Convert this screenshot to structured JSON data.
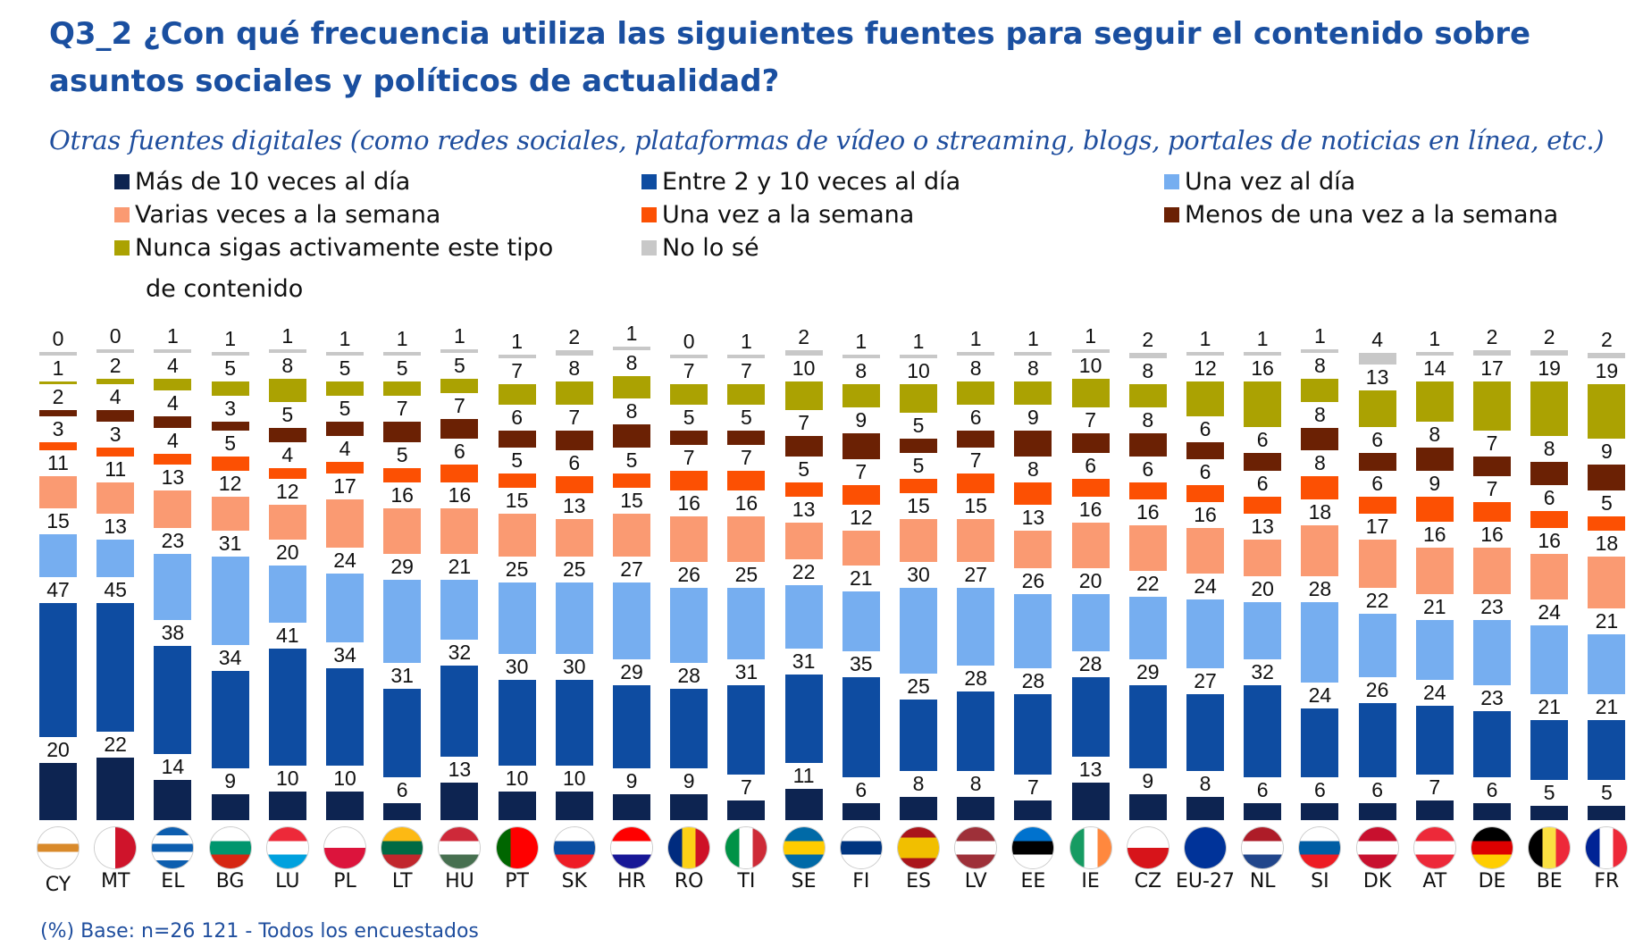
{
  "title": "Q3_2 ¿Con qué frecuencia utiliza las siguientes fuentes para seguir el contenido sobre asuntos sociales y políticos de actualidad?",
  "subtitle": "Otras fuentes digitales (como redes sociales, plataformas de vídeo o streaming, blogs, portales de noticias en línea, etc.)",
  "footer": "(%) Base: n=26 121 - Todos los encuestados",
  "chart_data": {
    "type": "bar",
    "stacked": true,
    "categories": [
      "CY",
      "MT",
      "EL",
      "BG",
      "LU",
      "PL",
      "LT",
      "HU",
      "PT",
      "SK",
      "HR",
      "RO",
      "TI",
      "SE",
      "FI",
      "ES",
      "LV",
      "EE",
      "IE",
      "CZ",
      "EU-27",
      "NL",
      "SI",
      "DK",
      "AT",
      "DE",
      "BE",
      "FR"
    ],
    "legend_position": "top",
    "series": [
      {
        "name": "Más de 10 veces al día",
        "color": "#0d2451",
        "values": [
          20,
          22,
          14,
          9,
          10,
          10,
          6,
          13,
          10,
          10,
          9,
          9,
          7,
          11,
          6,
          8,
          8,
          7,
          13,
          9,
          8,
          6,
          6,
          6,
          7,
          6,
          5,
          5
        ]
      },
      {
        "name": "Entre 2 y 10 veces al día",
        "color": "#0e4ca1",
        "values": [
          47,
          45,
          38,
          34,
          41,
          34,
          31,
          32,
          30,
          30,
          29,
          28,
          31,
          31,
          35,
          25,
          28,
          28,
          28,
          29,
          27,
          32,
          24,
          26,
          24,
          23,
          21,
          21
        ]
      },
      {
        "name": "Una vez al día",
        "color": "#76aef0",
        "values": [
          15,
          13,
          23,
          31,
          20,
          24,
          29,
          21,
          25,
          25,
          27,
          26,
          25,
          22,
          21,
          30,
          27,
          26,
          20,
          22,
          24,
          20,
          28,
          22,
          21,
          23,
          24,
          21
        ]
      },
      {
        "name": "Varias veces a la semana",
        "color": "#fa9a72",
        "values": [
          11,
          11,
          13,
          12,
          12,
          17,
          16,
          16,
          15,
          13,
          15,
          16,
          16,
          13,
          12,
          15,
          15,
          13,
          16,
          16,
          16,
          13,
          18,
          17,
          16,
          16,
          16,
          18
        ]
      },
      {
        "name": "Una vez a la semana",
        "color": "#fc5003",
        "values": [
          3,
          3,
          4,
          5,
          4,
          4,
          5,
          6,
          5,
          6,
          5,
          7,
          7,
          5,
          7,
          5,
          7,
          8,
          6,
          6,
          6,
          6,
          8,
          6,
          9,
          7,
          6,
          5
        ]
      },
      {
        "name": "Menos de una vez a la semana",
        "color": "#6b2104",
        "values": [
          2,
          4,
          4,
          3,
          5,
          5,
          7,
          7,
          6,
          7,
          8,
          5,
          5,
          7,
          9,
          5,
          6,
          9,
          7,
          8,
          6,
          6,
          8,
          6,
          8,
          7,
          8,
          9
        ]
      },
      {
        "name": "Nunca sigas activamente este tipo de contenido",
        "color": "#aba202",
        "values": [
          1,
          2,
          4,
          5,
          8,
          5,
          5,
          5,
          7,
          8,
          8,
          7,
          7,
          10,
          8,
          10,
          8,
          8,
          10,
          8,
          12,
          16,
          8,
          13,
          14,
          17,
          19,
          19
        ]
      },
      {
        "name": "No lo sé",
        "color": "#c8c8c8",
        "values": [
          0,
          0,
          1,
          1,
          1,
          1,
          1,
          1,
          1,
          2,
          1,
          0,
          1,
          2,
          1,
          1,
          1,
          1,
          1,
          2,
          1,
          1,
          1,
          4,
          1,
          2,
          2,
          2
        ]
      }
    ]
  },
  "legend": {
    "items": [
      "Más de 10 veces al día",
      "Entre 2 y 10 veces al día",
      "Una vez al día",
      "Varias veces a la semana",
      "Una vez a la semana",
      "Menos de una vez a la semana",
      "Nunca sigas activamente este tipo",
      "No lo sé"
    ],
    "wrap": "de contenido"
  },
  "flags": [
    {
      "dir": "h",
      "c": [
        "#ffffff",
        "#ffffff",
        "#d98a2b",
        "#ffffff",
        "#ffffff"
      ]
    },
    {
      "dir": "v",
      "c": [
        "#ffffff",
        "#cf142b"
      ]
    },
    {
      "dir": "h",
      "c": [
        "#0d5eaf",
        "#ffffff",
        "#0d5eaf",
        "#ffffff",
        "#0d5eaf"
      ]
    },
    {
      "dir": "h",
      "c": [
        "#ffffff",
        "#00966e",
        "#d62612"
      ]
    },
    {
      "dir": "h",
      "c": [
        "#ed2939",
        "#ffffff",
        "#00a1de"
      ]
    },
    {
      "dir": "h",
      "c": [
        "#ffffff",
        "#dc143c"
      ]
    },
    {
      "dir": "h",
      "c": [
        "#fdb913",
        "#006a44",
        "#c1272d"
      ]
    },
    {
      "dir": "h",
      "c": [
        "#ce2939",
        "#ffffff",
        "#477050"
      ]
    },
    {
      "dir": "v",
      "c": [
        "#006600",
        "#ff0000",
        "#ff0000"
      ]
    },
    {
      "dir": "h",
      "c": [
        "#ffffff",
        "#0b4ea2",
        "#ee1c25"
      ]
    },
    {
      "dir": "h",
      "c": [
        "#ff0000",
        "#ffffff",
        "#171796"
      ]
    },
    {
      "dir": "v",
      "c": [
        "#002b7f",
        "#fcd116",
        "#ce1126"
      ]
    },
    {
      "dir": "v",
      "c": [
        "#009246",
        "#ffffff",
        "#ce2b37"
      ]
    },
    {
      "dir": "h",
      "c": [
        "#006aa7",
        "#fecc00",
        "#006aa7"
      ]
    },
    {
      "dir": "h",
      "c": [
        "#ffffff",
        "#003580",
        "#ffffff"
      ]
    },
    {
      "dir": "h",
      "c": [
        "#aa151b",
        "#f1bf00",
        "#f1bf00",
        "#aa151b"
      ]
    },
    {
      "dir": "h",
      "c": [
        "#9e3039",
        "#ffffff",
        "#9e3039"
      ]
    },
    {
      "dir": "h",
      "c": [
        "#0072ce",
        "#000000",
        "#ffffff"
      ]
    },
    {
      "dir": "v",
      "c": [
        "#169b62",
        "#ffffff",
        "#ff883e"
      ]
    },
    {
      "dir": "h",
      "c": [
        "#ffffff",
        "#d7141a"
      ]
    },
    {
      "dir": "h",
      "c": [
        "#003399"
      ]
    },
    {
      "dir": "h",
      "c": [
        "#ae1c28",
        "#ffffff",
        "#21468b"
      ]
    },
    {
      "dir": "h",
      "c": [
        "#ffffff",
        "#005da4",
        "#ed1c24"
      ]
    },
    {
      "dir": "h",
      "c": [
        "#c8102e",
        "#ffffff",
        "#c8102e"
      ]
    },
    {
      "dir": "h",
      "c": [
        "#ed2939",
        "#ffffff",
        "#ed2939"
      ]
    },
    {
      "dir": "h",
      "c": [
        "#000000",
        "#dd0000",
        "#ffce00"
      ]
    },
    {
      "dir": "v",
      "c": [
        "#000000",
        "#fae042",
        "#ed2939"
      ]
    },
    {
      "dir": "v",
      "c": [
        "#002395",
        "#ffffff",
        "#ed2939"
      ]
    }
  ]
}
